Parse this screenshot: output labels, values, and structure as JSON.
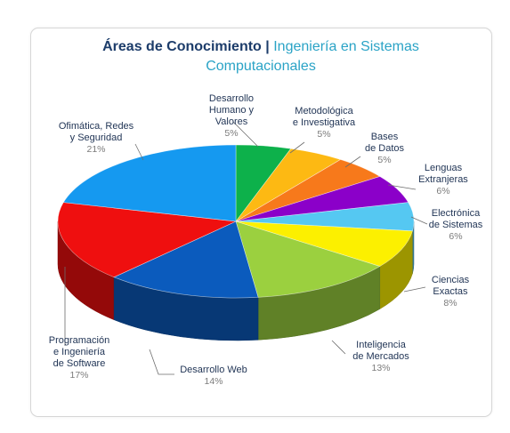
{
  "title": {
    "main": "Áreas de Conocimiento",
    "separator": "|",
    "sub_line1": "Ingeniería en Sistemas",
    "sub_line2": "Computacionales"
  },
  "chart_data": {
    "type": "pie",
    "style": "3d",
    "title": "Áreas de Conocimiento | Ingeniería en Sistemas Computacionales",
    "slices": [
      {
        "label": [
          "Desarrollo",
          "Humano y",
          "Valores"
        ],
        "value": 5,
        "pct_label": "5%",
        "color": "#0db14b"
      },
      {
        "label": [
          "Metodológica",
          "e Investigativa"
        ],
        "value": 5,
        "pct_label": "5%",
        "color": "#fdb913"
      },
      {
        "label": [
          "Bases",
          "de Datos"
        ],
        "value": 5,
        "pct_label": "5%",
        "color": "#f7791b"
      },
      {
        "label": [
          "Lenguas",
          "Extranjeras"
        ],
        "value": 6,
        "pct_label": "6%",
        "color": "#8b00c9"
      },
      {
        "label": [
          "Electrónica",
          "de Sistemas"
        ],
        "value": 6,
        "pct_label": "6%",
        "color": "#55c8f2"
      },
      {
        "label": [
          "Ciencias",
          "Exactas"
        ],
        "value": 8,
        "pct_label": "8%",
        "color": "#fcf000"
      },
      {
        "label": [
          "Inteligencia",
          "de Mercados"
        ],
        "value": 13,
        "pct_label": "13%",
        "color": "#9bd03f"
      },
      {
        "label": [
          "Desarrollo Web"
        ],
        "value": 14,
        "pct_label": "14%",
        "color": "#0b5bbd"
      },
      {
        "label": [
          "Programación",
          "e Ingeniería",
          "de Software"
        ],
        "value": 17,
        "pct_label": "17%",
        "color": "#ef0f0f"
      },
      {
        "label": [
          "Ofimática, Redes",
          "y Seguridad"
        ],
        "value": 21,
        "pct_label": "21%",
        "color": "#1599f0"
      }
    ]
  }
}
